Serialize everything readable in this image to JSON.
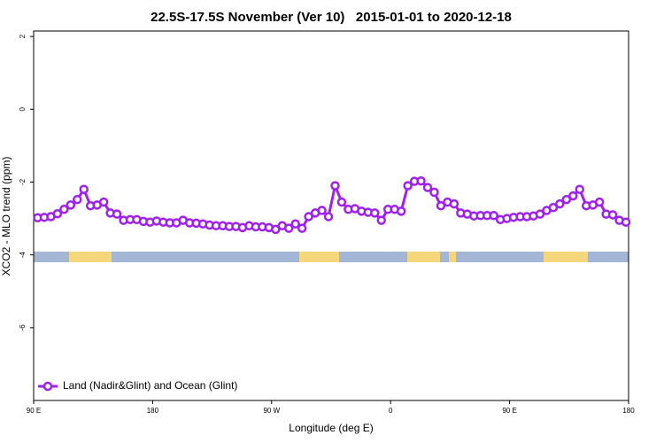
{
  "chart_data": {
    "type": "line",
    "title": "22.5S-17.5S November (Ver 10)   2015-01-01 to 2020-12-18",
    "xlabel": "Longitude (deg E)",
    "ylabel": "XCO2 - MLO trend (ppm)",
    "x": [
      93,
      98,
      103,
      108,
      113,
      118,
      123,
      128,
      133,
      138,
      143,
      148,
      153,
      158,
      163,
      168,
      173,
      178,
      183,
      188,
      193,
      198,
      203,
      208,
      213,
      218,
      223,
      228,
      233,
      238,
      243,
      248,
      253,
      258,
      263,
      268,
      273,
      278,
      283,
      288,
      293,
      298,
      303,
      308,
      313,
      318,
      323,
      328,
      333,
      338,
      343,
      348,
      353,
      358,
      363,
      368,
      373,
      378,
      383,
      388,
      393,
      398,
      403,
      408,
      413,
      418,
      423,
      428,
      433,
      438,
      443,
      448,
      453,
      458,
      463,
      468,
      473,
      478,
      483,
      488,
      493,
      498,
      503,
      508,
      513,
      518,
      523,
      528,
      533,
      538
    ],
    "series": [
      {
        "name": "Land (Nadir&Glint) and Ocean (Glint)",
        "color": "#a020f0",
        "values": [
          -2.98,
          -2.97,
          -2.95,
          -2.87,
          -2.75,
          -2.63,
          -2.48,
          -2.2,
          -2.65,
          -2.63,
          -2.55,
          -2.85,
          -2.88,
          -3.05,
          -3.03,
          -3.03,
          -3.08,
          -3.1,
          -3.07,
          -3.1,
          -3.12,
          -3.12,
          -3.05,
          -3.12,
          -3.13,
          -3.15,
          -3.18,
          -3.2,
          -3.2,
          -3.22,
          -3.22,
          -3.25,
          -3.2,
          -3.23,
          -3.23,
          -3.25,
          -3.3,
          -3.2,
          -3.27,
          -3.15,
          -3.27,
          -2.95,
          -2.85,
          -2.78,
          -2.95,
          -2.1,
          -2.55,
          -2.75,
          -2.73,
          -2.8,
          -2.83,
          -2.85,
          -3.05,
          -2.75,
          -2.75,
          -2.8,
          -2.1,
          -1.98,
          -1.97,
          -2.15,
          -2.28,
          -2.65,
          -2.55,
          -2.6,
          -2.85,
          -2.88,
          -2.93,
          -2.92,
          -2.92,
          -2.92,
          -3.03,
          -3.0,
          -2.97,
          -2.95,
          -2.95,
          -2.93,
          -2.88,
          -2.78,
          -2.7,
          -2.6,
          -2.48,
          -2.38,
          -2.2,
          -2.65,
          -2.63,
          -2.55,
          -2.88,
          -2.9,
          -3.05,
          -3.1
        ]
      }
    ],
    "xlim": [
      90,
      540
    ],
    "xticks": [
      {
        "value": 90,
        "label": "90 E"
      },
      {
        "value": 180,
        "label": "180"
      },
      {
        "value": 270,
        "label": "90 W"
      },
      {
        "value": 360,
        "label": "0"
      },
      {
        "value": 450,
        "label": "90 E"
      },
      {
        "value": 540,
        "label": "180"
      }
    ],
    "ylim": [
      -8,
      2.15
    ],
    "yticks": [
      2,
      0,
      -2,
      -4,
      -6
    ],
    "legend": "bottom-left"
  }
}
